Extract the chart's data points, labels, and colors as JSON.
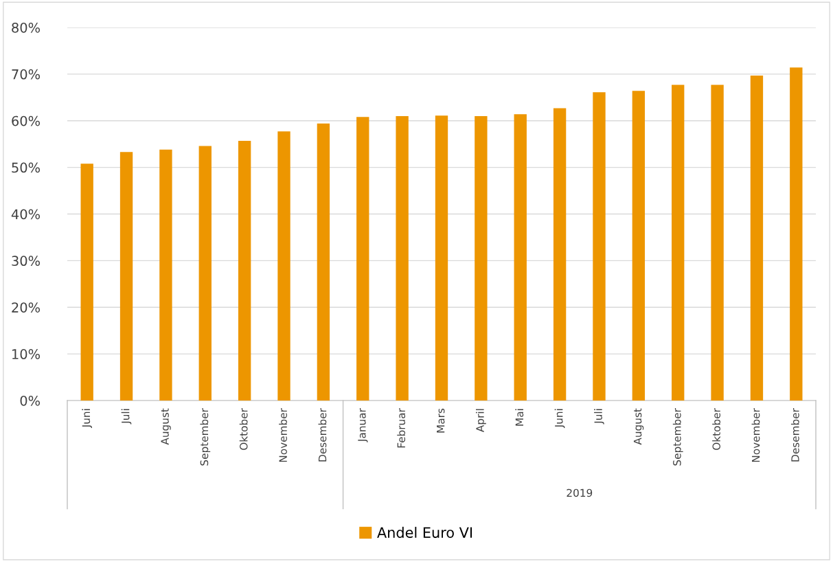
{
  "chart_data": {
    "type": "bar",
    "categories": [
      "Juni",
      "Juli",
      "August",
      "September",
      "Oktober",
      "November",
      "Desember",
      "Januar",
      "Februar",
      "Mars",
      "April",
      "Mai",
      "Juni",
      "Juli",
      "August",
      "September",
      "Oktober",
      "November",
      "Desember"
    ],
    "series": [
      {
        "name": "Andel Euro VI",
        "color": "#ed9600",
        "values": [
          50.8,
          53.3,
          53.8,
          54.6,
          55.7,
          57.7,
          59.4,
          60.8,
          61.0,
          61.1,
          61.0,
          61.4,
          62.7,
          66.1,
          66.4,
          67.7,
          67.7,
          69.7,
          71.4
        ]
      }
    ],
    "ylim": [
      0,
      80
    ],
    "yticks": [
      {
        "value": 0,
        "label": "0%"
      },
      {
        "value": 10,
        "label": "10%"
      },
      {
        "value": 20,
        "label": "20%"
      },
      {
        "value": 30,
        "label": "30%"
      },
      {
        "value": 40,
        "label": "40%"
      },
      {
        "value": 50,
        "label": "50%"
      },
      {
        "value": 60,
        "label": "60%"
      },
      {
        "value": 70,
        "label": "70%"
      },
      {
        "value": 80,
        "label": "80%"
      }
    ],
    "grid": "y",
    "legend": "bottom",
    "annotations": [
      "2019"
    ]
  }
}
